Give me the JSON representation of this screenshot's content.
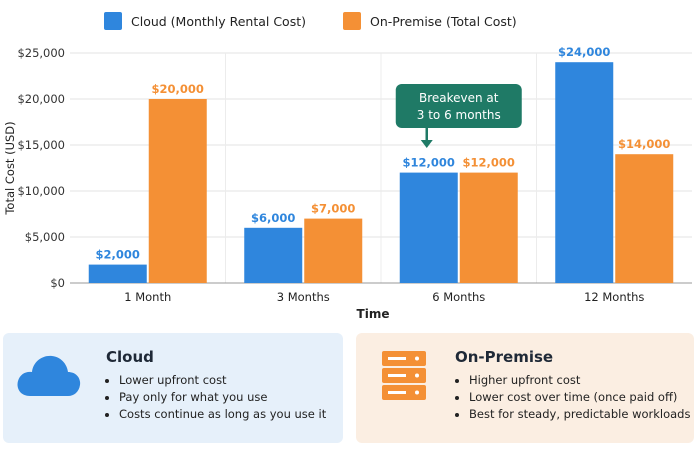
{
  "colors": {
    "cloud": "#2f86dd",
    "onprem": "#f49035",
    "callout": "#1f7a66"
  },
  "legend": {
    "cloud": "Cloud (Monthly Rental Cost)",
    "onprem": "On-Premise (Total Cost)"
  },
  "chart_data": {
    "type": "bar",
    "categories": [
      "1 Month",
      "3 Months",
      "6 Months",
      "12 Months"
    ],
    "series": [
      {
        "name": "Cloud (Monthly Rental Cost)",
        "values": [
          2000,
          6000,
          12000,
          24000
        ]
      },
      {
        "name": "On-Premise (Total Cost)",
        "values": [
          20000,
          7000,
          12000,
          14000
        ]
      }
    ],
    "data_labels": {
      "cloud": [
        "$2,000",
        "$6,000",
        "$12,000",
        "$24,000"
      ],
      "onprem": [
        "$20,000",
        "$7,000",
        "$12,000",
        "$14,000"
      ]
    },
    "yticks": [
      0,
      5000,
      10000,
      15000,
      20000,
      25000
    ],
    "ytick_labels": [
      "$0",
      "$5,000",
      "$10,000",
      "$15,000",
      "$20,000",
      "$25,000"
    ],
    "ylim": [
      0,
      25000
    ],
    "xlabel": "Time",
    "ylabel": "Total Cost (USD)",
    "legend_position": "top",
    "grid": true,
    "annotation": {
      "lines": [
        "Breakeven at",
        "3 to 6 months"
      ],
      "category": "6 Months"
    }
  },
  "cards": {
    "cloud": {
      "title": "Cloud",
      "bullets": [
        "Lower upfront cost",
        "Pay only for what you use",
        "Costs continue as long as you use it"
      ]
    },
    "onprem": {
      "title": "On-Premise",
      "bullets": [
        "Higher upfront cost",
        "Lower cost over time (once paid off)",
        "Best for steady, predictable workloads"
      ]
    }
  }
}
